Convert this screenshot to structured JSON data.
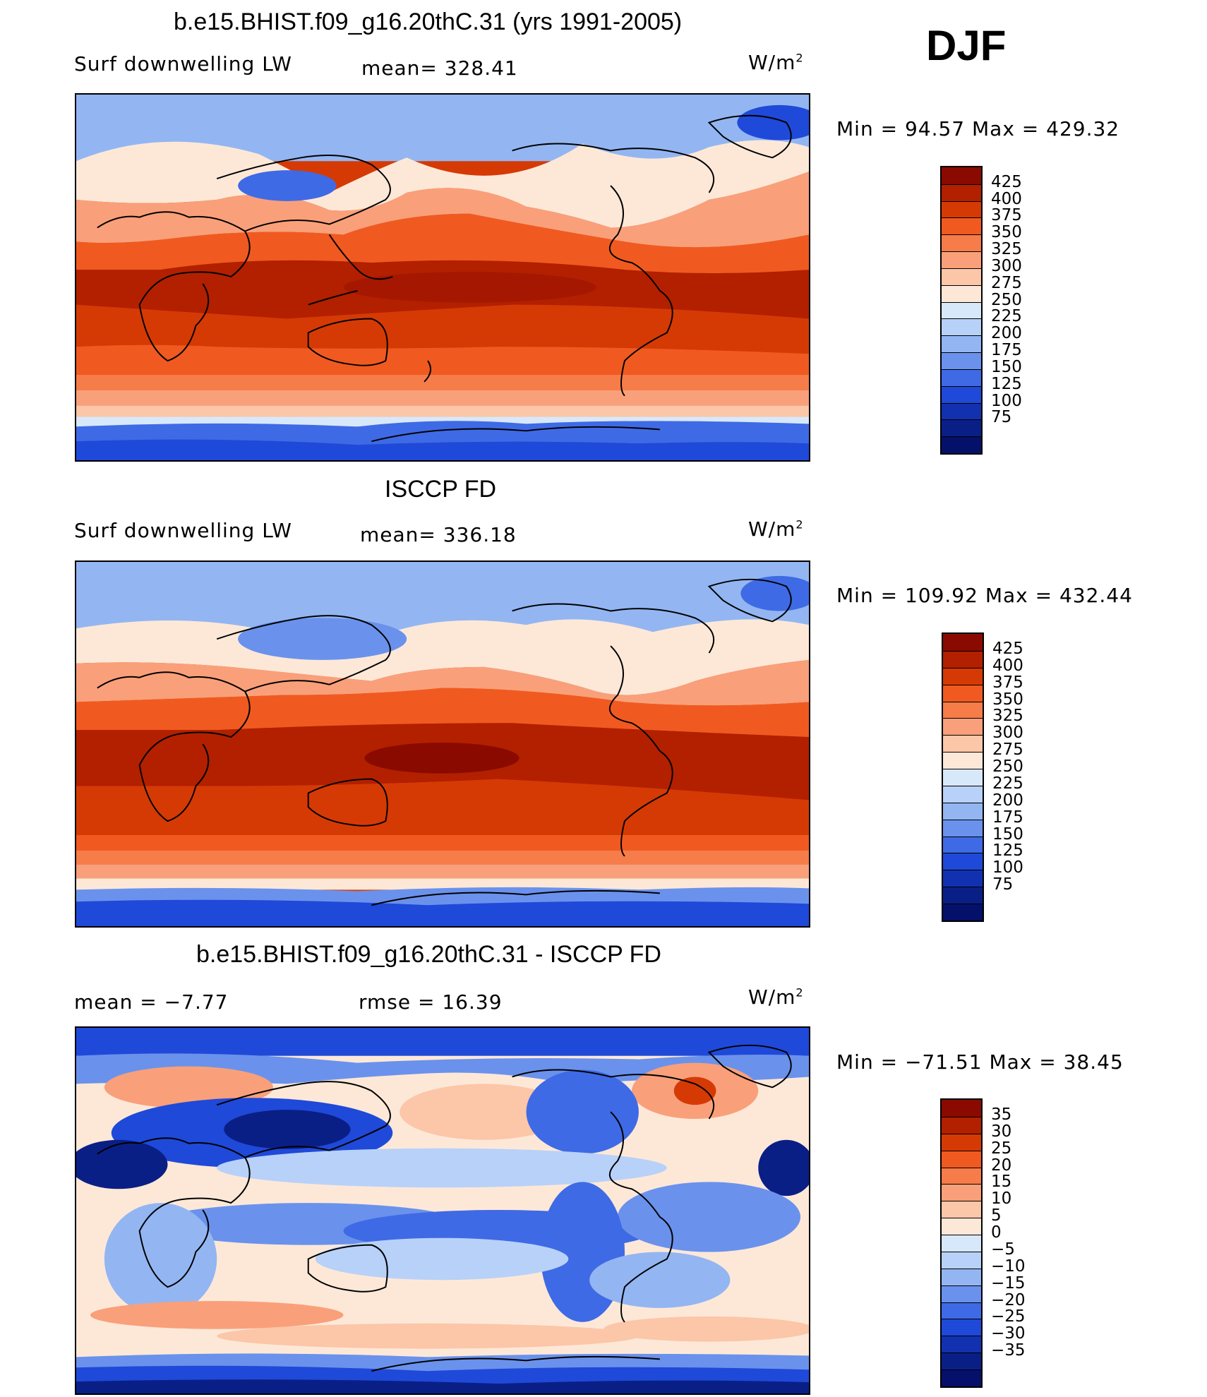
{
  "season": "DJF",
  "panels": [
    {
      "title": "b.e15.BHIST.f09_g16.20thC.31 (yrs 1991-2005)",
      "left_label": "Surf downwelling LW",
      "center_label": "mean= 328.41",
      "units": "W/m",
      "units_sup": "2",
      "minmax": "Min =   94.57 Max = 429.32",
      "colorbar": {
        "colors": [
          "#8b0a00",
          "#b22000",
          "#d53a05",
          "#f05a20",
          "#f67c4a",
          "#f9a07a",
          "#fcc6a8",
          "#fde8d8",
          "#d8e8fb",
          "#b8d1f8",
          "#93b6f2",
          "#6a92ec",
          "#3f6ae5",
          "#1f49d8",
          "#1231b0",
          "#0a1f86",
          "#04106a"
        ],
        "labels": [
          "425",
          "400",
          "375",
          "350",
          "325",
          "300",
          "275",
          "250",
          "225",
          "200",
          "175",
          "150",
          "125",
          "100",
          "75"
        ]
      }
    },
    {
      "title": "ISCCP FD",
      "left_label": "Surf downwelling LW",
      "center_label": "mean= 336.18",
      "units": "W/m",
      "units_sup": "2",
      "minmax": "Min = 109.92 Max = 432.44",
      "colorbar": {
        "colors": [
          "#8b0a00",
          "#b22000",
          "#d53a05",
          "#f05a20",
          "#f67c4a",
          "#f9a07a",
          "#fcc6a8",
          "#fde8d8",
          "#d8e8fb",
          "#b8d1f8",
          "#93b6f2",
          "#6a92ec",
          "#3f6ae5",
          "#1f49d8",
          "#1231b0",
          "#0a1f86",
          "#04106a"
        ],
        "labels": [
          "425",
          "400",
          "375",
          "350",
          "325",
          "300",
          "275",
          "250",
          "225",
          "200",
          "175",
          "150",
          "125",
          "100",
          "75"
        ]
      }
    },
    {
      "title": "b.e15.BHIST.f09_g16.20thC.31 - ISCCP FD",
      "left_label": "mean =   −7.77",
      "center_label": "rmse =   16.39",
      "units": "W/m",
      "units_sup": "2",
      "minmax": "Min = −71.51 Max =   38.45",
      "colorbar": {
        "colors": [
          "#8b0a00",
          "#b22000",
          "#d53a05",
          "#f05a20",
          "#f67c4a",
          "#f9a07a",
          "#fcc6a8",
          "#fde8d8",
          "#d8e8fb",
          "#b8d1f8",
          "#93b6f2",
          "#6a92ec",
          "#3f6ae5",
          "#1f49d8",
          "#1231b0",
          "#0a1f86",
          "#04106a"
        ],
        "labels": [
          "35",
          "30",
          "25",
          "20",
          "15",
          "10",
          "5",
          "0",
          "−5",
          "−10",
          "−15",
          "−20",
          "−25",
          "−30",
          "−35"
        ]
      }
    }
  ]
}
